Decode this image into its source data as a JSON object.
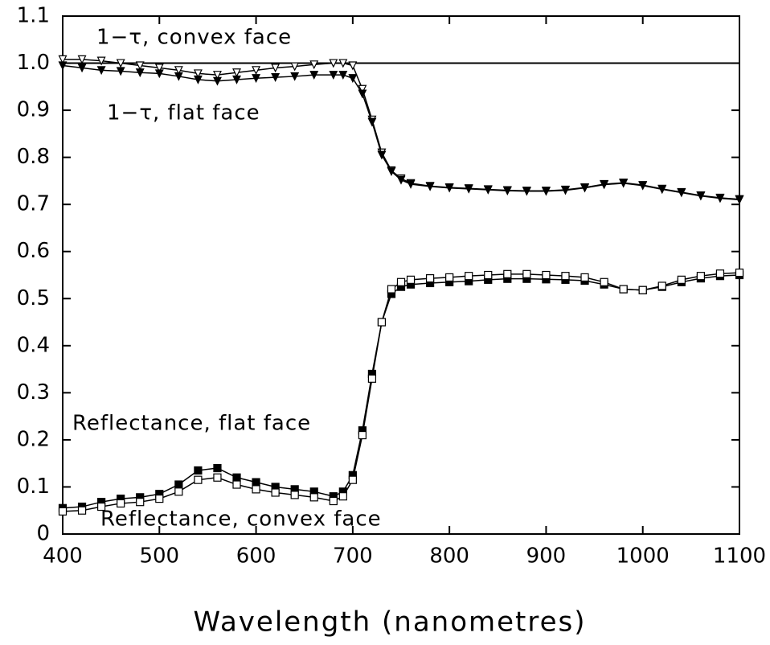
{
  "chart_data": {
    "type": "line",
    "xlabel": "Wavelength (nanometres)",
    "x": [
      400,
      420,
      440,
      460,
      480,
      500,
      520,
      540,
      560,
      580,
      600,
      620,
      640,
      660,
      680,
      690,
      700,
      710,
      720,
      730,
      740,
      750,
      760,
      780,
      800,
      820,
      840,
      860,
      880,
      900,
      920,
      940,
      960,
      980,
      1000,
      1020,
      1040,
      1060,
      1080,
      1100
    ],
    "series": [
      {
        "color": "#000000",
        "marker": "triangle-down",
        "filled": false,
        "values": [
          1.008,
          1.008,
          1.005,
          1.0,
          0.995,
          0.99,
          0.985,
          0.978,
          0.975,
          0.98,
          0.985,
          0.99,
          0.993,
          0.997,
          1.0,
          1.0,
          0.995,
          0.945,
          0.88,
          0.81,
          0.772,
          0.755,
          0.745,
          0.739,
          0.736,
          0.734,
          0.732,
          0.73,
          0.729,
          0.729,
          0.731,
          0.736,
          0.743,
          0.746,
          0.741,
          0.733,
          0.726,
          0.719,
          0.714,
          0.711
        ]
      },
      {
        "color": "#000000",
        "marker": "triangle-down",
        "filled": true,
        "values": [
          0.995,
          0.99,
          0.985,
          0.983,
          0.98,
          0.978,
          0.972,
          0.965,
          0.962,
          0.965,
          0.968,
          0.97,
          0.972,
          0.975,
          0.975,
          0.975,
          0.968,
          0.935,
          0.875,
          0.805,
          0.77,
          0.752,
          0.743,
          0.738,
          0.735,
          0.733,
          0.731,
          0.729,
          0.728,
          0.728,
          0.73,
          0.735,
          0.742,
          0.745,
          0.74,
          0.732,
          0.725,
          0.718,
          0.713,
          0.71
        ]
      },
      {
        "color": "#000000",
        "marker": "square",
        "filled": true,
        "values": [
          0.055,
          0.058,
          0.068,
          0.075,
          0.078,
          0.085,
          0.105,
          0.135,
          0.14,
          0.12,
          0.11,
          0.1,
          0.095,
          0.09,
          0.08,
          0.09,
          0.125,
          0.22,
          0.34,
          0.45,
          0.51,
          0.525,
          0.53,
          0.533,
          0.535,
          0.537,
          0.54,
          0.542,
          0.542,
          0.541,
          0.54,
          0.538,
          0.53,
          0.52,
          0.518,
          0.525,
          0.535,
          0.543,
          0.548,
          0.55
        ]
      },
      {
        "color": "#000000",
        "marker": "square",
        "filled": false,
        "values": [
          0.048,
          0.05,
          0.058,
          0.065,
          0.068,
          0.075,
          0.09,
          0.115,
          0.12,
          0.105,
          0.095,
          0.088,
          0.083,
          0.078,
          0.07,
          0.08,
          0.115,
          0.21,
          0.33,
          0.45,
          0.52,
          0.535,
          0.54,
          0.543,
          0.545,
          0.548,
          0.55,
          0.552,
          0.552,
          0.55,
          0.548,
          0.545,
          0.535,
          0.52,
          0.518,
          0.527,
          0.54,
          0.548,
          0.553,
          0.555
        ]
      }
    ],
    "annotations": [
      "1−τ, convex face",
      "1−τ, flat face",
      "Reflectance, flat face",
      "Reflectance, convex face"
    ],
    "reference_line": 1,
    "xlim": [
      400,
      1100
    ],
    "xticks": [
      400,
      500,
      600,
      700,
      800,
      900,
      1000,
      1100
    ],
    "ylim": [
      0,
      1.1
    ],
    "yticks": [
      0,
      0.1,
      0.2,
      0.3,
      0.4,
      0.5,
      0.6,
      0.7,
      0.8,
      0.9,
      {
        "value": 1,
        "label": "1.0"
      },
      1.1
    ],
    "grid": false
  }
}
